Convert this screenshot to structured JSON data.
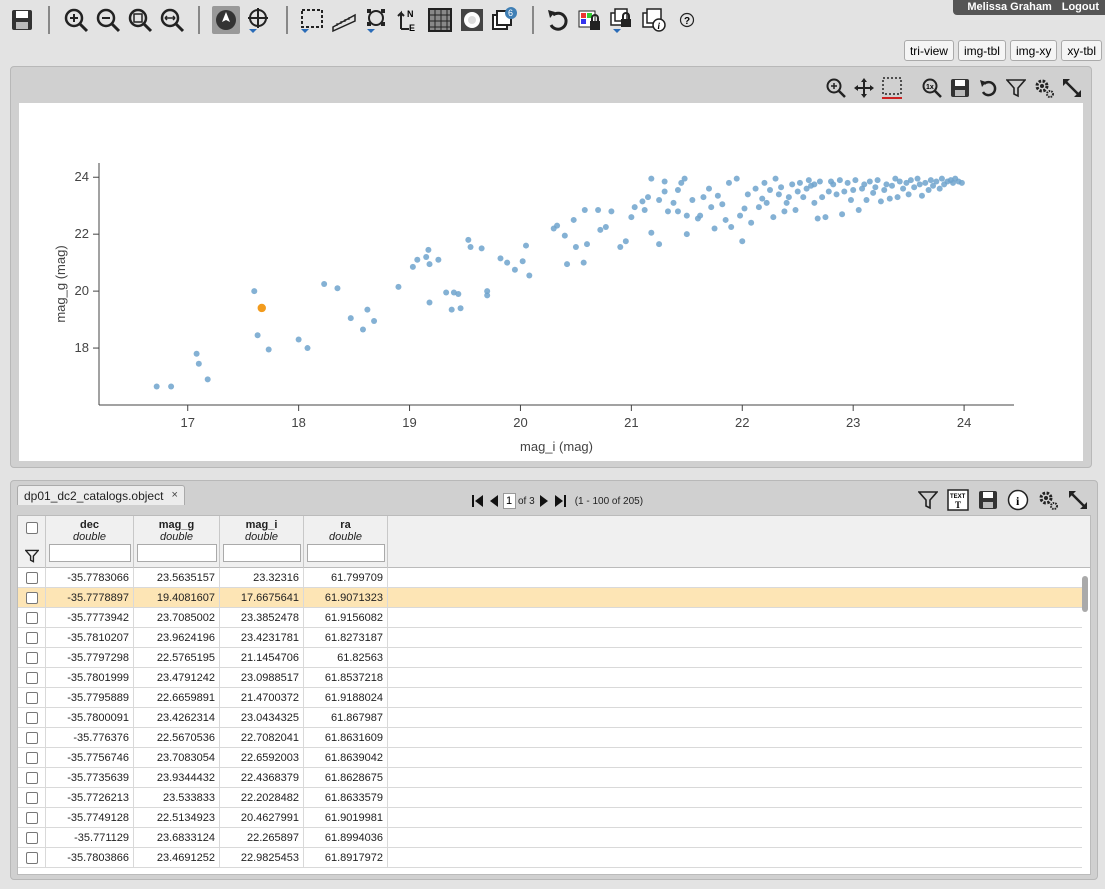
{
  "user": {
    "name": "Melissa Graham",
    "logout": "Logout"
  },
  "view_tabs": [
    "tri-view",
    "img-tbl",
    "img-xy",
    "xy-tbl"
  ],
  "toolbar": {
    "badge_count": "6",
    "help_glyph": "?"
  },
  "colors": {
    "point": "#6fa3cc",
    "highlight": "#f29b1d",
    "row_highlight": "#fde5b5"
  },
  "chart_data": {
    "type": "scatter",
    "xlabel": "mag_i (mag)",
    "ylabel": "mag_g (mag)",
    "xlim": [
      16.2,
      24.45
    ],
    "ylim": [
      16.0,
      24.5
    ],
    "xticks": [
      17,
      18,
      19,
      20,
      21,
      22,
      23,
      24
    ],
    "yticks": [
      18,
      20,
      22,
      24
    ],
    "points": [
      [
        16.72,
        16.65
      ],
      [
        16.85,
        16.65
      ],
      [
        17.08,
        17.8
      ],
      [
        17.1,
        17.45
      ],
      [
        17.18,
        16.9
      ],
      [
        17.6,
        20.0
      ],
      [
        17.63,
        18.45
      ],
      [
        17.73,
        17.95
      ],
      [
        18.0,
        18.3
      ],
      [
        18.08,
        18.0
      ],
      [
        18.23,
        20.25
      ],
      [
        18.35,
        20.1
      ],
      [
        18.47,
        19.05
      ],
      [
        18.58,
        18.65
      ],
      [
        18.62,
        19.35
      ],
      [
        18.68,
        18.95
      ],
      [
        18.9,
        20.15
      ],
      [
        19.03,
        20.85
      ],
      [
        19.07,
        21.1
      ],
      [
        19.15,
        21.2
      ],
      [
        19.18,
        20.95
      ],
      [
        19.17,
        21.45
      ],
      [
        19.26,
        21.1
      ],
      [
        19.18,
        19.6
      ],
      [
        19.33,
        19.95
      ],
      [
        19.38,
        19.35
      ],
      [
        19.4,
        19.95
      ],
      [
        19.44,
        19.9
      ],
      [
        19.46,
        19.4
      ],
      [
        19.53,
        21.8
      ],
      [
        19.55,
        21.55
      ],
      [
        19.65,
        21.5
      ],
      [
        19.7,
        19.85
      ],
      [
        19.7,
        20.0
      ],
      [
        19.82,
        21.15
      ],
      [
        19.88,
        21.0
      ],
      [
        19.95,
        20.75
      ],
      [
        20.02,
        21.05
      ],
      [
        20.05,
        21.6
      ],
      [
        20.08,
        20.55
      ],
      [
        20.3,
        22.2
      ],
      [
        20.33,
        22.3
      ],
      [
        20.4,
        21.95
      ],
      [
        20.42,
        20.95
      ],
      [
        20.5,
        21.55
      ],
      [
        20.48,
        22.5
      ],
      [
        20.57,
        21.0
      ],
      [
        20.6,
        21.65
      ],
      [
        20.58,
        22.85
      ],
      [
        20.7,
        22.85
      ],
      [
        20.72,
        22.15
      ],
      [
        20.77,
        22.25
      ],
      [
        20.82,
        22.8
      ],
      [
        20.9,
        21.55
      ],
      [
        20.95,
        21.75
      ],
      [
        21.0,
        22.6
      ],
      [
        21.03,
        22.95
      ],
      [
        21.1,
        23.15
      ],
      [
        21.12,
        22.85
      ],
      [
        21.15,
        23.3
      ],
      [
        21.18,
        22.05
      ],
      [
        21.18,
        23.95
      ],
      [
        21.25,
        23.2
      ],
      [
        21.25,
        21.65
      ],
      [
        21.3,
        23.5
      ],
      [
        21.3,
        23.85
      ],
      [
        21.33,
        22.8
      ],
      [
        21.38,
        23.1
      ],
      [
        21.42,
        22.8
      ],
      [
        21.42,
        23.55
      ],
      [
        21.45,
        23.8
      ],
      [
        21.48,
        23.95
      ],
      [
        21.5,
        22.65
      ],
      [
        21.5,
        22.0
      ],
      [
        21.55,
        23.2
      ],
      [
        21.6,
        22.55
      ],
      [
        21.62,
        22.65
      ],
      [
        21.65,
        23.3
      ],
      [
        21.7,
        23.6
      ],
      [
        21.72,
        22.95
      ],
      [
        21.75,
        22.2
      ],
      [
        21.78,
        23.35
      ],
      [
        21.82,
        23.05
      ],
      [
        21.85,
        22.5
      ],
      [
        21.88,
        23.8
      ],
      [
        21.9,
        22.25
      ],
      [
        21.95,
        23.95
      ],
      [
        21.98,
        22.65
      ],
      [
        22.0,
        21.75
      ],
      [
        22.02,
        22.9
      ],
      [
        22.05,
        23.4
      ],
      [
        22.08,
        22.4
      ],
      [
        22.12,
        23.6
      ],
      [
        22.15,
        22.95
      ],
      [
        22.18,
        23.25
      ],
      [
        22.2,
        23.8
      ],
      [
        22.22,
        23.1
      ],
      [
        22.25,
        23.55
      ],
      [
        22.28,
        22.6
      ],
      [
        22.3,
        23.95
      ],
      [
        22.33,
        23.4
      ],
      [
        22.35,
        23.65
      ],
      [
        22.38,
        22.8
      ],
      [
        22.4,
        23.1
      ],
      [
        22.42,
        23.3
      ],
      [
        22.45,
        23.75
      ],
      [
        22.48,
        22.85
      ],
      [
        22.5,
        23.5
      ],
      [
        22.52,
        23.8
      ],
      [
        22.55,
        23.3
      ],
      [
        22.58,
        23.6
      ],
      [
        22.6,
        23.9
      ],
      [
        22.62,
        23.7
      ],
      [
        22.65,
        23.75
      ],
      [
        22.65,
        23.1
      ],
      [
        22.68,
        22.55
      ],
      [
        22.7,
        23.85
      ],
      [
        22.72,
        23.3
      ],
      [
        22.75,
        22.6
      ],
      [
        22.78,
        23.5
      ],
      [
        22.8,
        23.85
      ],
      [
        22.82,
        23.75
      ],
      [
        22.85,
        23.4
      ],
      [
        22.88,
        23.9
      ],
      [
        22.9,
        22.7
      ],
      [
        22.92,
        23.5
      ],
      [
        22.95,
        23.8
      ],
      [
        22.98,
        23.2
      ],
      [
        23.0,
        23.55
      ],
      [
        23.02,
        23.9
      ],
      [
        23.05,
        22.85
      ],
      [
        23.08,
        23.6
      ],
      [
        23.1,
        23.75
      ],
      [
        23.12,
        23.2
      ],
      [
        23.15,
        23.85
      ],
      [
        23.18,
        23.45
      ],
      [
        23.2,
        23.65
      ],
      [
        23.22,
        23.9
      ],
      [
        23.25,
        23.15
      ],
      [
        23.28,
        23.55
      ],
      [
        23.3,
        23.75
      ],
      [
        23.33,
        23.25
      ],
      [
        23.35,
        23.7
      ],
      [
        23.38,
        23.95
      ],
      [
        23.4,
        23.3
      ],
      [
        23.42,
        23.85
      ],
      [
        23.45,
        23.6
      ],
      [
        23.48,
        23.8
      ],
      [
        23.5,
        23.4
      ],
      [
        23.52,
        23.9
      ],
      [
        23.55,
        23.65
      ],
      [
        23.58,
        23.95
      ],
      [
        23.6,
        23.75
      ],
      [
        23.62,
        23.35
      ],
      [
        23.65,
        23.8
      ],
      [
        23.68,
        23.55
      ],
      [
        23.7,
        23.9
      ],
      [
        23.72,
        23.7
      ],
      [
        23.75,
        23.85
      ],
      [
        23.78,
        23.6
      ],
      [
        23.8,
        23.95
      ],
      [
        23.82,
        23.75
      ],
      [
        23.85,
        23.85
      ],
      [
        23.88,
        23.9
      ],
      [
        23.9,
        23.8
      ],
      [
        23.92,
        23.95
      ],
      [
        23.95,
        23.85
      ],
      [
        23.98,
        23.8
      ]
    ],
    "highlighted_point": [
      17.6675641,
      19.4081607
    ]
  },
  "table": {
    "tab_label": "dp01_dc2_catalogs.object",
    "tab_close": "×",
    "pager": {
      "page": "1",
      "of_pages": "of 3",
      "range": "(1 - 100 of 205)"
    },
    "columns": [
      {
        "name": "dec",
        "type": "double"
      },
      {
        "name": "mag_g",
        "type": "double"
      },
      {
        "name": "mag_i",
        "type": "double"
      },
      {
        "name": "ra",
        "type": "double"
      }
    ],
    "highlighted_row": 1,
    "rows": [
      [
        "-35.7783066",
        "23.5635157",
        "23.32316",
        "61.799709"
      ],
      [
        "-35.7778897",
        "19.4081607",
        "17.6675641",
        "61.9071323"
      ],
      [
        "-35.7773942",
        "23.7085002",
        "23.3852478",
        "61.9156082"
      ],
      [
        "-35.7810207",
        "23.9624196",
        "23.4231781",
        "61.8273187"
      ],
      [
        "-35.7797298",
        "22.5765195",
        "21.1454706",
        "61.82563"
      ],
      [
        "-35.7801999",
        "23.4791242",
        "23.0988517",
        "61.8537218"
      ],
      [
        "-35.7795889",
        "22.6659891",
        "21.4700372",
        "61.9188024"
      ],
      [
        "-35.7800091",
        "23.4262314",
        "23.0434325",
        "61.867987"
      ],
      [
        "-35.776376",
        "22.5670536",
        "22.7082041",
        "61.8631609"
      ],
      [
        "-35.7756746",
        "23.7083054",
        "22.6592003",
        "61.8639042"
      ],
      [
        "-35.7735639",
        "23.9344432",
        "22.4368379",
        "61.8628675"
      ],
      [
        "-35.7726213",
        "23.533833",
        "22.2028482",
        "61.8633579"
      ],
      [
        "-35.7749128",
        "22.5134923",
        "20.4627991",
        "61.9019981"
      ],
      [
        "-35.771129",
        "23.6833124",
        "22.265897",
        "61.8994036"
      ],
      [
        "-35.7803866",
        "23.4691252",
        "22.9825453",
        "61.8917972"
      ]
    ]
  }
}
